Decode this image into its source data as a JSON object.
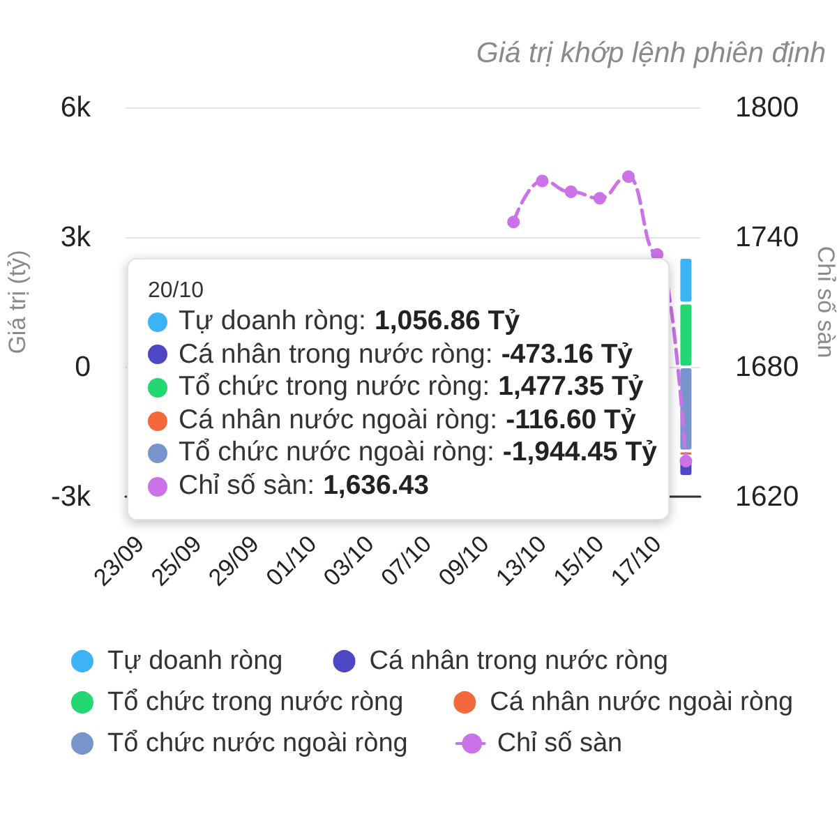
{
  "chart_data": {
    "type": "bar",
    "subtitle": "Giá trị khớp lệnh phiên định",
    "ylabel": "Giá trị (tỷ)",
    "y2label": "Chỉ số sàn",
    "annotations": [
      "20/10",
      "Tự doanh ròng: 1,056.86 Tỷ",
      "Cá nhân trong nước ròng: -473.16 Tỷ",
      "Tổ chức trong nước ròng: 1,477.35 Tỷ",
      "Cá nhân nước ngoài ròng: -116.60 Tỷ",
      "Tổ chức nước ngoài ròng: -1,944.45 Tỷ",
      "Chỉ số sàn: 1,636.43"
    ],
    "categories": [
      "23/09",
      null,
      "25/09",
      null,
      "29/09",
      null,
      "01/10",
      null,
      "03/10",
      null,
      "07/10",
      null,
      "09/10",
      null,
      "13/10",
      null,
      "15/10",
      null,
      "17/10",
      null
    ],
    "stacked": true,
    "series": [
      {
        "name": "Tổ chức nước ngoài ròng",
        "color": "#7795cb",
        "values": [
          null,
          null,
          null,
          null,
          null,
          null,
          null,
          null,
          null,
          null,
          null,
          null,
          null,
          null,
          null,
          null,
          null,
          null,
          null,
          -1944.45
        ]
      },
      {
        "name": "Cá nhân nước ngoài ròng",
        "color": "#f4693b",
        "values": [
          null,
          null,
          null,
          null,
          null,
          null,
          null,
          null,
          null,
          null,
          null,
          null,
          null,
          null,
          null,
          null,
          null,
          null,
          null,
          -116.6
        ]
      },
      {
        "name": "Tổ chức trong nước ròng",
        "color": "#23d772",
        "values": [
          null,
          null,
          null,
          null,
          null,
          null,
          null,
          null,
          null,
          null,
          null,
          null,
          null,
          null,
          null,
          null,
          null,
          null,
          null,
          1477.35
        ]
      },
      {
        "name": "Cá nhân trong nước ròng",
        "color": "#4d47c3",
        "values": [
          null,
          null,
          null,
          null,
          null,
          null,
          null,
          null,
          null,
          null,
          null,
          null,
          null,
          null,
          null,
          null,
          null,
          null,
          null,
          -473.16
        ]
      },
      {
        "name": "Tự doanh ròng",
        "color": "#3db3f6",
        "values": [
          null,
          null,
          null,
          null,
          null,
          null,
          null,
          null,
          null,
          null,
          null,
          null,
          null,
          null,
          null,
          null,
          null,
          null,
          null,
          1056.86
        ]
      },
      {
        "name": "Chỉ số sàn",
        "type": "line",
        "axis": "y2",
        "color": "#cb72e8",
        "values": [
          null,
          null,
          null,
          null,
          null,
          null,
          null,
          null,
          null,
          null,
          null,
          null,
          null,
          1747,
          1766,
          1761,
          1758,
          1768,
          1732,
          1636.43
        ]
      }
    ],
    "ylim": [
      -3000,
      6000
    ],
    "yticks": [
      {
        "value": -3000,
        "label": "-3k"
      },
      0,
      {
        "value": 3000,
        "label": "3k"
      },
      {
        "value": 6000,
        "label": "6k"
      }
    ],
    "y2lim": [
      1620,
      1800
    ],
    "y2ticks": [
      1620,
      1680,
      1740,
      1800
    ],
    "grid": "y",
    "legend": "bottom",
    "marker": "circle",
    "line_style": "dashed"
  }
}
